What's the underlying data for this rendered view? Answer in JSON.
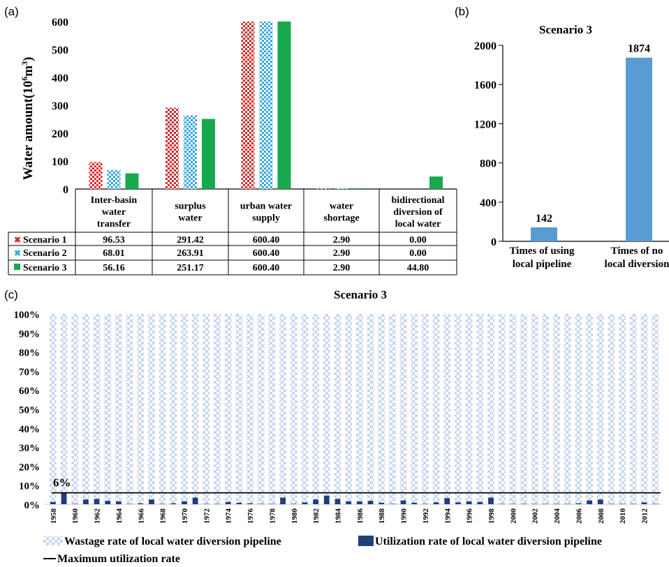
{
  "chart_data": [
    {
      "panel": "(a)",
      "type": "bar",
      "ylabel_main": "Water amount(10",
      "ylabel_sup1": "6",
      "ylabel_mid": "m",
      "ylabel_sup2": "3",
      "ylabel_end": ")",
      "ylim": [
        0,
        600
      ],
      "yticks": [
        "0",
        "100",
        "200",
        "300",
        "400",
        "500",
        "600"
      ],
      "categories": [
        [
          "Inter-basin",
          "water",
          "transfer"
        ],
        [
          "surplus",
          "water"
        ],
        [
          "urban water",
          "supply"
        ],
        [
          "water",
          "shortage"
        ],
        [
          "bidirectional",
          "diversion of",
          "local water"
        ]
      ],
      "series": [
        {
          "name": "Scenario 1",
          "color": "#d62b2b",
          "pattern": "checker",
          "values": [
            96.53,
            291.42,
            600.4,
            2.9,
            0.0
          ],
          "labels": [
            "96.53",
            "291.42",
            "600.40",
            "2.90",
            "0.00"
          ]
        },
        {
          "name": "Scenario 2",
          "color": "#36a8d8",
          "pattern": "checker",
          "values": [
            68.01,
            263.91,
            600.4,
            2.9,
            0.0
          ],
          "labels": [
            "68.01",
            "263.91",
            "600.40",
            "2.90",
            "0.00"
          ]
        },
        {
          "name": "Scenario 3",
          "color": "#18a84e",
          "pattern": "solid",
          "values": [
            56.16,
            251.17,
            600.4,
            2.9,
            44.8
          ],
          "labels": [
            "56.16",
            "251.17",
            "600.40",
            "2.90",
            "44.80"
          ]
        }
      ]
    },
    {
      "panel": "(b)",
      "type": "bar",
      "title": "Scenario 3",
      "ylim": [
        0,
        2000
      ],
      "yticks": [
        "0",
        "400",
        "800",
        "1200",
        "1600",
        "2000"
      ],
      "categories": [
        [
          "Times of using",
          "local pipeline"
        ],
        [
          "Times of no",
          "local diversion"
        ]
      ],
      "values": [
        142,
        1874
      ],
      "labels": [
        "142",
        "1874"
      ],
      "color": "#5b9bd5"
    },
    {
      "panel": "(c)",
      "type": "bar",
      "title": "Scenario  3",
      "ylim": [
        0,
        100
      ],
      "yticks": [
        "0%",
        "10%",
        "20%",
        "30%",
        "40%",
        "50%",
        "60%",
        "70%",
        "80%",
        "90%",
        "100%"
      ],
      "x_start": 1958,
      "x_end": 2013,
      "x_tick_labels": [
        "1958",
        "1960",
        "1962",
        "1964",
        "1966",
        "1968",
        "1970",
        "1972",
        "1974",
        "1976",
        "1978",
        "1980",
        "1982",
        "1984",
        "1986",
        "1988",
        "1990",
        "1992",
        "1994",
        "1996",
        "1998",
        "2000",
        "2002",
        "2004",
        "2006",
        "2008",
        "2010",
        "2012"
      ],
      "utilization": [
        1.2,
        5.8,
        0.2,
        2.5,
        2.8,
        1.8,
        1.5,
        0.2,
        0.5,
        2.5,
        0.2,
        0.5,
        1.5,
        3.5,
        0.2,
        0.2,
        1.2,
        0.8,
        0.5,
        0.2,
        0.2,
        3.5,
        0.2,
        1.0,
        2.5,
        4.5,
        2.8,
        1.5,
        1.5,
        1.8,
        0.8,
        0.2,
        2.0,
        0.8,
        0.2,
        1.0,
        3.2,
        1.0,
        1.5,
        1.2,
        3.5,
        0.2,
        0.2,
        0.2,
        0.2,
        0.2,
        0.2,
        0.2,
        0.5,
        2.0,
        2.5,
        0.2,
        0.2,
        0.2,
        1.0,
        0.2
      ],
      "max_rate": 6,
      "max_rate_label": "6%",
      "legend": {
        "wastage": "Wastage rate of local water diversion pipeline",
        "utilization": "Utilization rate of local water diversion pipeline",
        "max": "Maximum utilization rate"
      },
      "colors": {
        "utilization": "#1f3f7a",
        "wastage": "#a9c3e8",
        "line": "#000000"
      }
    }
  ]
}
